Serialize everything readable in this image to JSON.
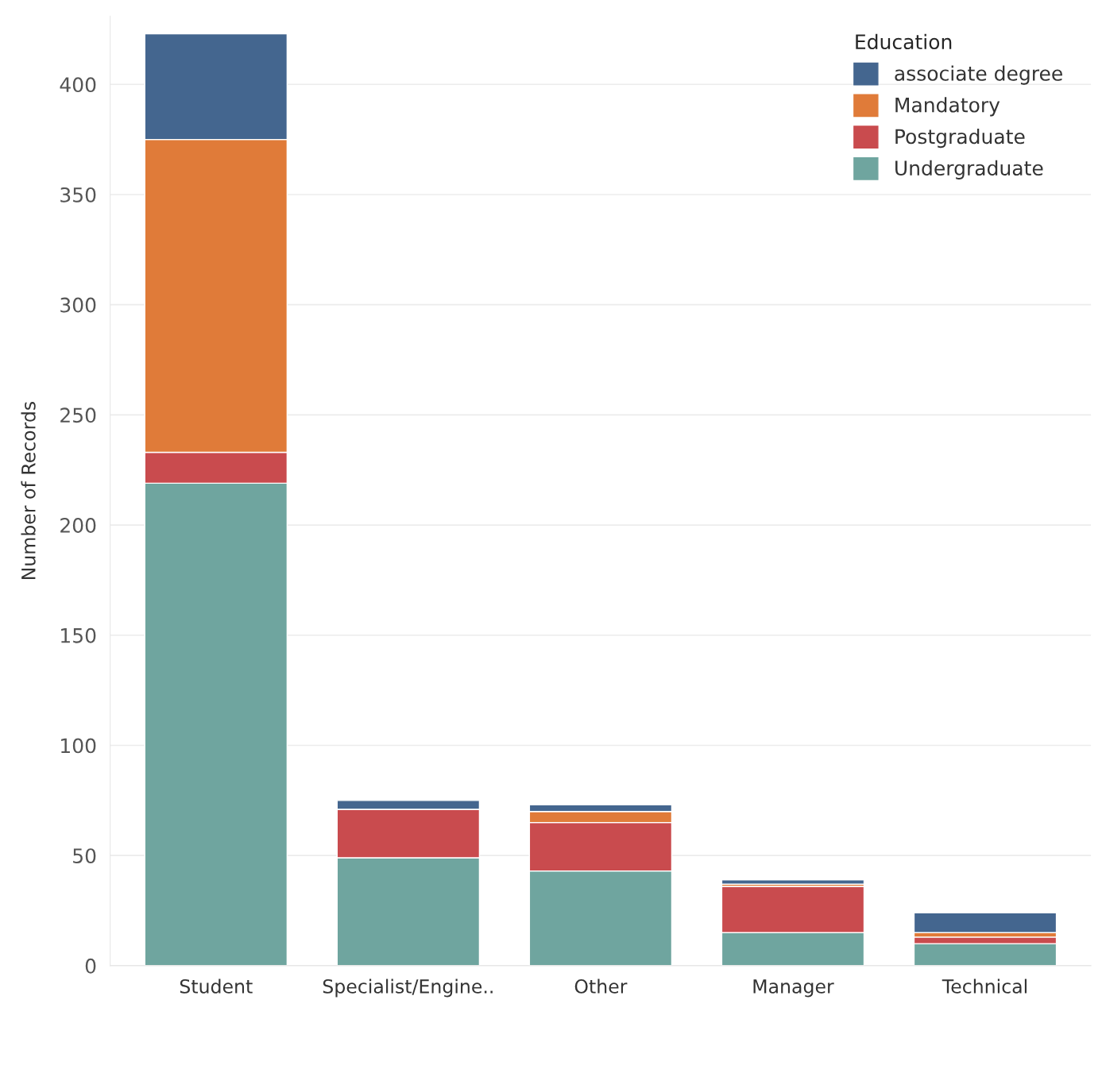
{
  "chart_data": {
    "type": "bar",
    "stacked": true,
    "ylabel": "Number of Records",
    "legend_title": "Education",
    "legend": "top right",
    "grid": "y",
    "categories": [
      "Student",
      "Specialist/Engine..",
      "Other",
      "Manager",
      "Technical"
    ],
    "series": [
      {
        "name": "Undergraduate",
        "color": "#6fa59f",
        "values": [
          219,
          49,
          43,
          15,
          10
        ]
      },
      {
        "name": "Postgraduate",
        "color": "#c94b4e",
        "values": [
          14,
          22,
          22,
          21,
          3
        ]
      },
      {
        "name": "Mandatory",
        "color": "#e07b39",
        "values": [
          142,
          0,
          5,
          1,
          2
        ]
      },
      {
        "name": "associate degree",
        "color": "#44668f",
        "values": [
          48,
          4,
          3,
          2,
          9
        ]
      }
    ],
    "ylim": [
      0,
      431
    ],
    "yticks": [
      0,
      50,
      100,
      150,
      200,
      250,
      300,
      350,
      400
    ]
  }
}
